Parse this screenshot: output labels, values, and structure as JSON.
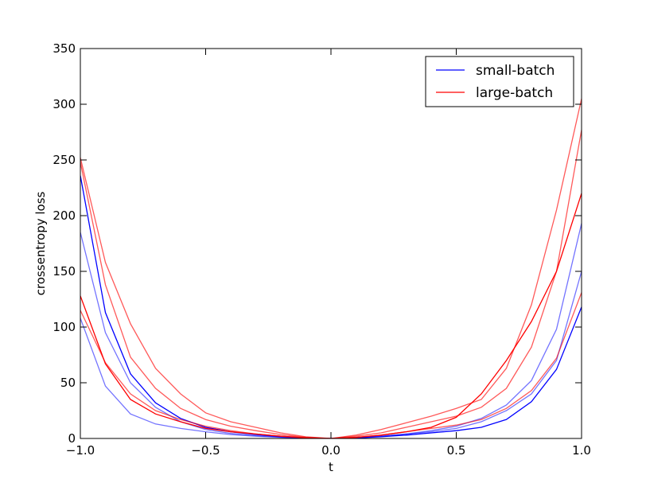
{
  "chart_data": {
    "type": "line",
    "title": "",
    "xlabel": "t",
    "ylabel": "crossentropy loss",
    "xlim": [
      -1.0,
      1.0
    ],
    "ylim": [
      0,
      350
    ],
    "grid": false,
    "legend": "top-right",
    "x": [
      -1.0,
      -0.9,
      -0.8,
      -0.7,
      -0.6,
      -0.5,
      -0.4,
      -0.3,
      -0.2,
      -0.1,
      0.0,
      0.1,
      0.2,
      0.3,
      0.4,
      0.5,
      0.6,
      0.7,
      0.8,
      0.9,
      1.0
    ],
    "xticks": [
      "−1.0",
      "−0.5",
      "0.0",
      "0.5",
      "1.0"
    ],
    "xtick_values": [
      -1.0,
      -0.5,
      0.0,
      0.5,
      1.0
    ],
    "yticks": [
      "0",
      "50",
      "100",
      "150",
      "200",
      "250",
      "300",
      "350"
    ],
    "ytick_values": [
      0,
      50,
      100,
      150,
      200,
      250,
      300,
      350
    ],
    "legend_entries": [
      {
        "label": "small-batch",
        "color": "#0000ff"
      },
      {
        "label": "large-batch",
        "color": "#ff0000"
      }
    ],
    "series": [
      {
        "group": "small-batch",
        "color": "#0000ff",
        "opacity": 1.0,
        "values": [
          236,
          113,
          58,
          32,
          18,
          10,
          6,
          3.5,
          1.5,
          0.5,
          0,
          0.5,
          1.5,
          3,
          5,
          7,
          10,
          17,
          33,
          62,
          118
        ]
      },
      {
        "group": "small-batch",
        "color": "#0000ff",
        "opacity": 0.55,
        "values": [
          185,
          95,
          50,
          28,
          15,
          8,
          4.5,
          2.5,
          1.2,
          0.4,
          0,
          0.5,
          2,
          4,
          6,
          9,
          15,
          25,
          40,
          70,
          150
        ]
      },
      {
        "group": "small-batch",
        "color": "#0000ff",
        "opacity": 0.55,
        "values": [
          108,
          47,
          22,
          13,
          9,
          6,
          3.5,
          2,
          1,
          0.3,
          0,
          0.5,
          2,
          4,
          7,
          11,
          18,
          30,
          52,
          98,
          193
        ]
      },
      {
        "group": "large-batch",
        "color": "#ff0000",
        "opacity": 1.0,
        "values": [
          128,
          67,
          35,
          22,
          15,
          9,
          6,
          4,
          2,
          0.7,
          0,
          1,
          3,
          6,
          10,
          19,
          40,
          70,
          105,
          150,
          220
        ]
      },
      {
        "group": "large-batch",
        "color": "#ff0000",
        "opacity": 0.65,
        "values": [
          252,
          158,
          103,
          63,
          40,
          23,
          15,
          10,
          5,
          1.5,
          0,
          3,
          8,
          14,
          20,
          27,
          35,
          63,
          120,
          205,
          305
        ]
      },
      {
        "group": "large-batch",
        "color": "#ff0000",
        "opacity": 0.65,
        "values": [
          248,
          138,
          73,
          45,
          27,
          17,
          11,
          7,
          3.5,
          1,
          0,
          2,
          5,
          10,
          15,
          20,
          28,
          45,
          82,
          150,
          277
        ]
      },
      {
        "group": "large-batch",
        "color": "#ff0000",
        "opacity": 0.65,
        "values": [
          115,
          68,
          40,
          25,
          17,
          11,
          7,
          4,
          2,
          0.5,
          0,
          1,
          3,
          6,
          9,
          12,
          17,
          27,
          43,
          72,
          131
        ]
      }
    ]
  }
}
